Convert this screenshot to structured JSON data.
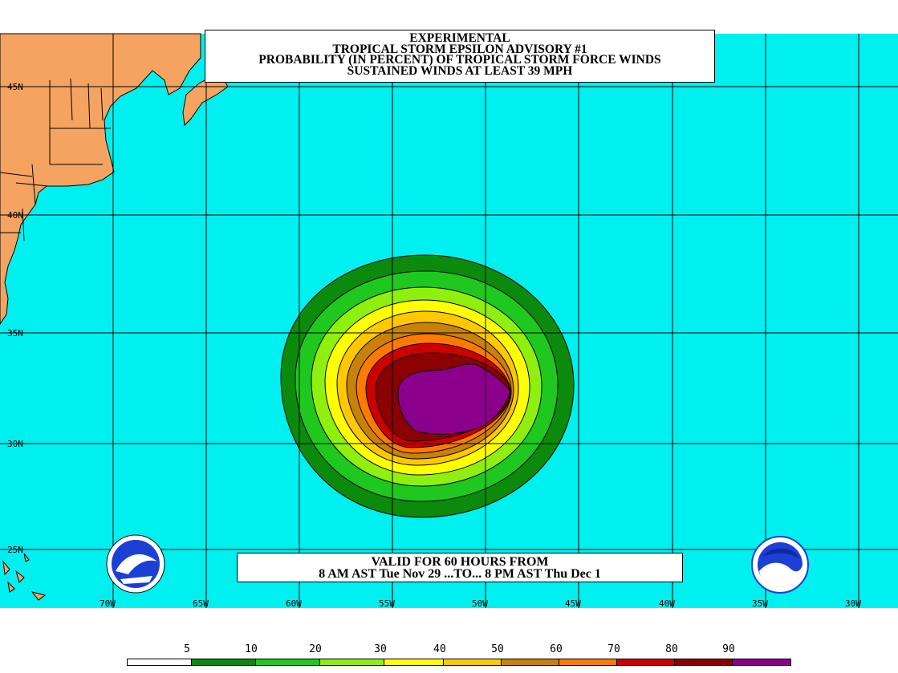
{
  "title": {
    "line1": "EXPERIMENTAL",
    "line2": "TROPICAL STORM EPSILON ADVISORY #1",
    "line3": "PROBABILITY (IN PERCENT) OF TROPICAL STORM FORCE WINDS",
    "line4": "SUSTAINED WINDS AT LEAST 39 MPH"
  },
  "valid": {
    "line1": "VALID FOR 60 HOURS FROM",
    "line2": "8 AM AST Tue Nov 29 ...TO... 8 PM AST Thu Dec 1"
  },
  "latitude_labels": [
    "45N",
    "40N",
    "35N",
    "30N",
    "25N"
  ],
  "longitude_labels": [
    "70W",
    "65W",
    "60W",
    "55W",
    "50W",
    "45W",
    "40W",
    "35W",
    "30W"
  ],
  "legend": {
    "ticks": [
      "5",
      "10",
      "20",
      "30",
      "40",
      "50",
      "60",
      "70",
      "80",
      "90"
    ],
    "colors": [
      "#ffffff",
      "#0b8a0b",
      "#1ec81e",
      "#8fef0f",
      "#ffff00",
      "#ffc800",
      "#c8820a",
      "#ff7a00",
      "#cc0000",
      "#8b0000",
      "#8b008b"
    ]
  },
  "colors": {
    "ocean": "#00f0f0",
    "land": "#f4a460",
    "grid": "#000000"
  },
  "logos": {
    "nws": "NATIONAL WEATHER SERVICE",
    "noaa": "NOAA"
  },
  "probability_contours": [
    5,
    10,
    20,
    30,
    40,
    50,
    60,
    70,
    80,
    90
  ]
}
